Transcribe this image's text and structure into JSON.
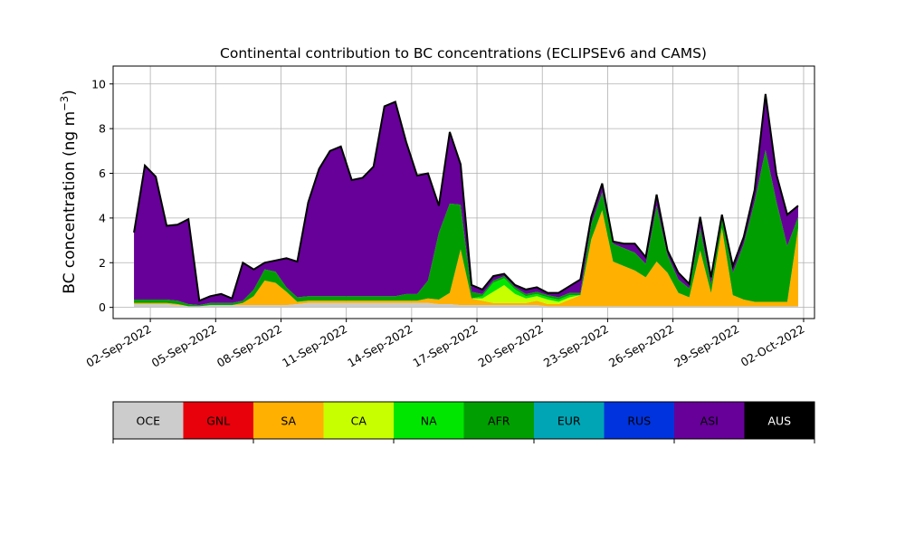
{
  "chart_data": {
    "type": "area",
    "stacked": true,
    "title": "Continental contribution to BC concentrations (ECLIPSEv6 and CAMS)",
    "xlabel": "",
    "ylabel": "BC concentration (ng m",
    "ylabel_superscript": "−3",
    "ylabel_suffix": ")",
    "x_unit": "date",
    "xlim": [
      "2022-08-31T07:00",
      "2022-10-02T12:00"
    ],
    "ylim": [
      -0.5,
      10.8
    ],
    "yticks": [
      0,
      2,
      4,
      6,
      8,
      10
    ],
    "xticks": [
      {
        "date": "2022-09-02",
        "label": "02-Sep-2022"
      },
      {
        "date": "2022-09-05",
        "label": "05-Sep-2022"
      },
      {
        "date": "2022-09-08",
        "label": "08-Sep-2022"
      },
      {
        "date": "2022-09-11",
        "label": "11-Sep-2022"
      },
      {
        "date": "2022-09-14",
        "label": "14-Sep-2022"
      },
      {
        "date": "2022-09-17",
        "label": "17-Sep-2022"
      },
      {
        "date": "2022-09-20",
        "label": "20-Sep-2022"
      },
      {
        "date": "2022-09-23",
        "label": "23-Sep-2022"
      },
      {
        "date": "2022-09-26",
        "label": "26-Sep-2022"
      },
      {
        "date": "2022-09-29",
        "label": "29-Sep-2022"
      },
      {
        "date": "2022-10-02",
        "label": "02-Oct-2022"
      }
    ],
    "grid": true,
    "x": [
      "2022-09-01T06:00",
      "2022-09-01T18:00",
      "2022-09-02T06:00",
      "2022-09-02T18:00",
      "2022-09-03T06:00",
      "2022-09-03T18:00",
      "2022-09-04T06:00",
      "2022-09-04T18:00",
      "2022-09-05T06:00",
      "2022-09-05T18:00",
      "2022-09-06T06:00",
      "2022-09-06T18:00",
      "2022-09-07T06:00",
      "2022-09-07T18:00",
      "2022-09-08T06:00",
      "2022-09-08T18:00",
      "2022-09-09T06:00",
      "2022-09-09T18:00",
      "2022-09-10T06:00",
      "2022-09-10T18:00",
      "2022-09-11T06:00",
      "2022-09-11T18:00",
      "2022-09-12T06:00",
      "2022-09-12T18:00",
      "2022-09-13T06:00",
      "2022-09-13T18:00",
      "2022-09-14T06:00",
      "2022-09-14T18:00",
      "2022-09-15T06:00",
      "2022-09-15T18:00",
      "2022-09-16T06:00",
      "2022-09-16T18:00",
      "2022-09-17T06:00",
      "2022-09-17T18:00",
      "2022-09-18T06:00",
      "2022-09-18T18:00",
      "2022-09-19T06:00",
      "2022-09-19T18:00",
      "2022-09-20T06:00",
      "2022-09-20T18:00",
      "2022-09-21T06:00",
      "2022-09-21T18:00",
      "2022-09-22T06:00",
      "2022-09-22T18:00",
      "2022-09-23T06:00",
      "2022-09-23T18:00",
      "2022-09-24T06:00",
      "2022-09-24T18:00",
      "2022-09-25T06:00",
      "2022-09-25T18:00",
      "2022-09-26T06:00",
      "2022-09-26T18:00",
      "2022-09-27T06:00",
      "2022-09-27T18:00",
      "2022-09-28T06:00",
      "2022-09-28T18:00",
      "2022-09-29T06:00",
      "2022-09-29T18:00",
      "2022-09-30T06:00",
      "2022-09-30T18:00",
      "2022-10-01T06:00",
      "2022-10-01T18:00"
    ],
    "series": [
      {
        "name": "OCE",
        "color": "#cccccc",
        "values": [
          0.15,
          0.15,
          0.15,
          0.15,
          0.1,
          0.05,
          0.05,
          0.1,
          0.1,
          0.1,
          0.1,
          0.1,
          0.1,
          0.1,
          0.1,
          0.15,
          0.2,
          0.2,
          0.2,
          0.2,
          0.2,
          0.2,
          0.2,
          0.2,
          0.2,
          0.2,
          0.2,
          0.2,
          0.15,
          0.15,
          0.1,
          0.1,
          0.1,
          0.1,
          0.1,
          0.1,
          0.1,
          0.1,
          0.05,
          0.05,
          0.05,
          0.05,
          0.05,
          0.05,
          0.05,
          0.05,
          0.05,
          0.05,
          0.05,
          0.05,
          0.05,
          0.05,
          0.05,
          0.05,
          0.05,
          0.05,
          0.05,
          0.05,
          0.05,
          0.05,
          0.05,
          0.05
        ]
      },
      {
        "name": "GNL",
        "color": "#e8000b",
        "values": [
          0,
          0,
          0,
          0,
          0,
          0,
          0,
          0,
          0,
          0,
          0,
          0,
          0,
          0,
          0,
          0,
          0,
          0,
          0,
          0,
          0,
          0,
          0,
          0,
          0,
          0,
          0,
          0,
          0,
          0,
          0,
          0,
          0,
          0,
          0,
          0,
          0,
          0,
          0,
          0,
          0,
          0,
          0,
          0,
          0,
          0,
          0,
          0,
          0,
          0,
          0,
          0,
          0,
          0,
          0,
          0,
          0,
          0,
          0,
          0,
          0,
          0
        ]
      },
      {
        "name": "SA",
        "color": "#ffb000",
        "values": [
          0.05,
          0.05,
          0.05,
          0.05,
          0.05,
          0,
          0,
          0,
          0,
          0,
          0.1,
          0.4,
          1.1,
          1.0,
          0.6,
          0.1,
          0.1,
          0.1,
          0.1,
          0.1,
          0.1,
          0.1,
          0.1,
          0.1,
          0.1,
          0.1,
          0.1,
          0.2,
          0.2,
          0.5,
          2.5,
          0.3,
          0.2,
          0.1,
          0.1,
          0.1,
          0.1,
          0.2,
          0.1,
          0.1,
          0.3,
          0.5,
          3.0,
          4.3,
          2.0,
          1.8,
          1.6,
          1.3,
          2.0,
          1.5,
          0.6,
          0.4,
          2.5,
          0.6,
          3.5,
          0.5,
          0.3,
          0.2,
          0.2,
          0.2,
          0.2,
          3.5
        ]
      },
      {
        "name": "CA",
        "color": "#c8ff00",
        "values": [
          0,
          0,
          0,
          0,
          0,
          0,
          0,
          0,
          0,
          0,
          0,
          0,
          0,
          0,
          0,
          0,
          0,
          0,
          0,
          0,
          0,
          0,
          0,
          0,
          0,
          0,
          0,
          0,
          0,
          0,
          0,
          0,
          0.1,
          0.5,
          0.8,
          0.4,
          0.2,
          0.2,
          0.2,
          0.1,
          0.1,
          0,
          0,
          0,
          0,
          0,
          0,
          0,
          0,
          0,
          0,
          0,
          0,
          0,
          0,
          0,
          0,
          0,
          0,
          0,
          0,
          0
        ]
      },
      {
        "name": "NA",
        "color": "#00e600",
        "values": [
          0,
          0,
          0,
          0,
          0,
          0,
          0,
          0,
          0,
          0,
          0,
          0,
          0,
          0,
          0,
          0,
          0,
          0,
          0,
          0,
          0,
          0,
          0,
          0,
          0,
          0,
          0,
          0,
          0,
          0,
          0,
          0,
          0.1,
          0.4,
          0.3,
          0.2,
          0.1,
          0.1,
          0.1,
          0.1,
          0.1,
          0,
          0,
          0,
          0,
          0,
          0,
          0,
          0,
          0,
          0,
          0,
          0,
          0,
          0,
          0,
          0,
          0,
          0,
          0,
          0,
          0
        ]
      },
      {
        "name": "AFR",
        "color": "#009e00",
        "values": [
          0.15,
          0.15,
          0.15,
          0.15,
          0.15,
          0.1,
          0.05,
          0.1,
          0.1,
          0.1,
          0.1,
          0.3,
          0.5,
          0.5,
          0.2,
          0.2,
          0.2,
          0.2,
          0.2,
          0.2,
          0.2,
          0.2,
          0.2,
          0.2,
          0.2,
          0.3,
          0.3,
          0.8,
          3.0,
          4.0,
          2.0,
          0.3,
          0.1,
          0.1,
          0.1,
          0.1,
          0.1,
          0.1,
          0.1,
          0.1,
          0.1,
          0.1,
          0.7,
          0.8,
          0.8,
          0.8,
          0.8,
          0.6,
          2.5,
          0.8,
          0.6,
          0.4,
          1.0,
          0.4,
          0.5,
          1.0,
          2.5,
          4.5,
          6.8,
          4.5,
          2.5,
          0.5
        ]
      },
      {
        "name": "EUR",
        "color": "#00a5b5",
        "values": [
          0,
          0,
          0,
          0,
          0,
          0,
          0,
          0,
          0,
          0,
          0,
          0,
          0,
          0,
          0,
          0,
          0,
          0,
          0,
          0,
          0,
          0,
          0,
          0,
          0,
          0,
          0,
          0,
          0,
          0,
          0,
          0,
          0,
          0,
          0,
          0,
          0,
          0,
          0,
          0,
          0,
          0,
          0,
          0,
          0,
          0,
          0,
          0,
          0,
          0,
          0,
          0,
          0,
          0,
          0,
          0,
          0,
          0,
          0,
          0,
          0,
          0
        ]
      },
      {
        "name": "RUS",
        "color": "#0033dd",
        "values": [
          0,
          0,
          0,
          0,
          0,
          0,
          0,
          0,
          0,
          0,
          0,
          0,
          0,
          0,
          0,
          0,
          0,
          0,
          0,
          0,
          0,
          0,
          0,
          0,
          0,
          0,
          0,
          0,
          0,
          0,
          0,
          0,
          0,
          0,
          0,
          0,
          0,
          0,
          0,
          0,
          0,
          0,
          0,
          0,
          0,
          0,
          0,
          0,
          0,
          0,
          0,
          0,
          0,
          0,
          0,
          0,
          0,
          0,
          0,
          0,
          0,
          0
        ]
      },
      {
        "name": "ASI",
        "color": "#660099",
        "values": [
          3.0,
          6.0,
          5.5,
          3.3,
          3.4,
          3.8,
          0.2,
          0.3,
          0.4,
          0.2,
          1.7,
          0.9,
          0.3,
          0.5,
          1.3,
          1.6,
          4.2,
          5.7,
          6.5,
          6.7,
          5.2,
          5.3,
          5.8,
          8.5,
          8.7,
          6.8,
          5.3,
          4.8,
          1.2,
          3.2,
          1.8,
          0.3,
          0.2,
          0.2,
          0.1,
          0.1,
          0.2,
          0.2,
          0.1,
          0.2,
          0.3,
          0.6,
          0.3,
          0.4,
          0.1,
          0.2,
          0.4,
          0.3,
          0.5,
          0.2,
          0.3,
          0.2,
          0.5,
          0.3,
          0.1,
          0.3,
          0.3,
          0.5,
          2.5,
          1.2,
          1.4,
          0.5
        ]
      },
      {
        "name": "AUS",
        "color": "#000000",
        "values": [
          0,
          0,
          0,
          0,
          0,
          0,
          0,
          0,
          0,
          0,
          0,
          0,
          0,
          0,
          0,
          0,
          0,
          0,
          0,
          0,
          0,
          0,
          0,
          0,
          0,
          0,
          0,
          0,
          0,
          0,
          0,
          0,
          0,
          0,
          0,
          0,
          0,
          0,
          0,
          0,
          0,
          0,
          0,
          0,
          0,
          0,
          0,
          0,
          0,
          0,
          0,
          0,
          0,
          0,
          0,
          0,
          0,
          0,
          0,
          0,
          0,
          0
        ]
      }
    ],
    "legend_placement": "bottom colorbar"
  }
}
